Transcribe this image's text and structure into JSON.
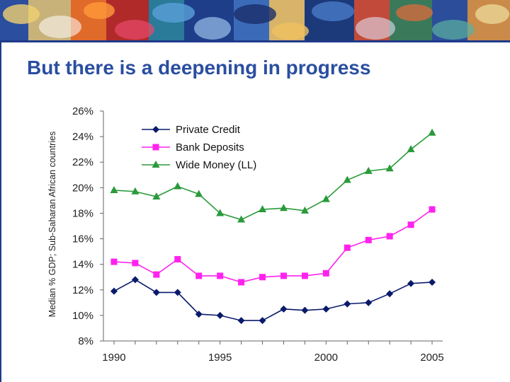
{
  "slide": {
    "title": "But there is a deepening in progress"
  },
  "colors": {
    "title": "#2a4ea0",
    "private_credit": "#0a1a6b",
    "bank_deposits": "#ff22ee",
    "wide_money": "#2a9a3a"
  },
  "chart_data": {
    "type": "line",
    "ylabel": "Median % GDP; Sub-Saharan African countries",
    "xlabel": "",
    "x": [
      1990,
      1991,
      1992,
      1993,
      1994,
      1995,
      1996,
      1997,
      1998,
      1999,
      2000,
      2001,
      2002,
      2003,
      2004,
      2005
    ],
    "x_ticks": [
      "1990",
      "1995",
      "2000",
      "2005"
    ],
    "y_ticks": [
      "26%",
      "24%",
      "22%",
      "20%",
      "18%",
      "16%",
      "14%",
      "12%",
      "10%",
      "8%"
    ],
    "ylim": [
      8,
      26
    ],
    "xlim": [
      1989.5,
      2005.5
    ],
    "legend_position": "top-left",
    "grid": false,
    "series": [
      {
        "name": "Private Credit",
        "marker": "diamond",
        "values": [
          11.9,
          12.8,
          11.8,
          11.8,
          10.1,
          10.0,
          9.6,
          9.6,
          10.5,
          10.4,
          10.5,
          10.9,
          11.0,
          11.7,
          12.5,
          12.6
        ]
      },
      {
        "name": "Bank Deposits",
        "marker": "square",
        "values": [
          14.2,
          14.1,
          13.2,
          14.4,
          13.1,
          13.1,
          12.6,
          13.0,
          13.1,
          13.1,
          13.3,
          15.3,
          15.9,
          16.2,
          17.1,
          18.3
        ]
      },
      {
        "name": "Wide Money (LL)",
        "marker": "triangle",
        "values": [
          19.8,
          19.7,
          19.3,
          20.1,
          19.5,
          18.0,
          17.5,
          18.3,
          18.4,
          18.2,
          19.1,
          20.6,
          21.3,
          21.5,
          23.0,
          24.3
        ]
      }
    ]
  }
}
